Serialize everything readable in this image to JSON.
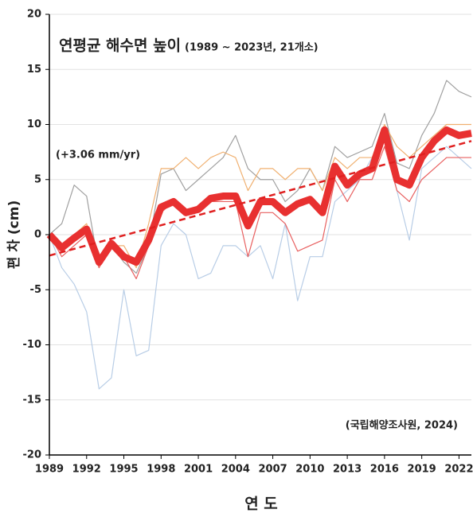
{
  "chart_data": {
    "type": "line",
    "title": "연평균 해수면 높이",
    "subtitle": "(1989 ~ 2023년, 21개소)",
    "annotation": "(+3.06 mm/yr)",
    "source": "(국립해양조사원, 2024)",
    "y_label": "편 차 (cm)",
    "x_label": "연 도",
    "x": [
      1989,
      1990,
      1991,
      1992,
      1993,
      1994,
      1995,
      1996,
      1997,
      1998,
      1999,
      2000,
      2001,
      2002,
      2003,
      2004,
      2005,
      2006,
      2007,
      2008,
      2009,
      2010,
      2011,
      2012,
      2013,
      2014,
      2015,
      2016,
      2017,
      2018,
      2019,
      2020,
      2021,
      2022,
      2023
    ],
    "xlim": [
      1989,
      2023
    ],
    "xticks": [
      1989,
      1992,
      1995,
      1998,
      2001,
      2004,
      2007,
      2010,
      2013,
      2016,
      2019,
      2022
    ],
    "ylim": [
      -20,
      20
    ],
    "yticks": [
      -20,
      -15,
      -10,
      -5,
      0,
      5,
      10,
      15,
      20
    ],
    "grid": true,
    "series": [
      {
        "color": "#a0a0a0",
        "values": [
          0,
          1,
          4.5,
          3.5,
          -3,
          -1,
          -2.5,
          -3.5,
          -1,
          5.5,
          6,
          4,
          5,
          6,
          7,
          9,
          6,
          5,
          5,
          3,
          4,
          6,
          4,
          8,
          7,
          7.5,
          8,
          11,
          6.5,
          6,
          9,
          11,
          14,
          13,
          12.5
        ]
      },
      {
        "color": "#b8cde6",
        "values": [
          0,
          -3,
          -4.5,
          -7,
          -14,
          -13,
          -5,
          -11,
          -10.5,
          -1,
          1,
          0,
          -4,
          -3.5,
          -1,
          -1,
          -2,
          -1,
          -4,
          1,
          -6,
          -2,
          -2,
          3,
          4,
          5,
          7,
          9,
          4,
          -0.5,
          6,
          7,
          8,
          7,
          6
        ]
      },
      {
        "color": "#f0b070",
        "values": [
          0,
          -1,
          0,
          1,
          -3,
          -1,
          -1,
          -3,
          1,
          6,
          6,
          7,
          6,
          7,
          7.5,
          7,
          4,
          6,
          6,
          5,
          6,
          6,
          4,
          7,
          6,
          7,
          7,
          10,
          8,
          7,
          8,
          9,
          10,
          10,
          10
        ]
      },
      {
        "color": "#e86060",
        "values": [
          0,
          -2,
          -1,
          0,
          -3,
          -1,
          -2,
          -4,
          -1,
          2,
          3,
          2,
          2,
          3,
          3,
          3,
          -2,
          2,
          2,
          1,
          -1.5,
          -1,
          -0.5,
          5,
          3,
          5,
          5,
          8,
          4,
          3,
          5,
          6,
          7,
          7,
          7
        ]
      },
      {
        "color": "#e83030",
        "values": [
          0,
          -1.2,
          -0.3,
          0.5,
          -2.5,
          -0.8,
          -2,
          -2.5,
          -0.5,
          2.5,
          3,
          2,
          2.3,
          3.3,
          3.5,
          3.5,
          0.8,
          3,
          3,
          2,
          2.8,
          3.2,
          2,
          6.2,
          4.5,
          5.5,
          6,
          9.5,
          5,
          4.5,
          7,
          8.5,
          9.5,
          9,
          9.2
        ]
      }
    ],
    "trend_line": {
      "color": "#e02020",
      "x": [
        1989,
        2023
      ],
      "values": [
        -1.9,
        8.5
      ]
    }
  }
}
